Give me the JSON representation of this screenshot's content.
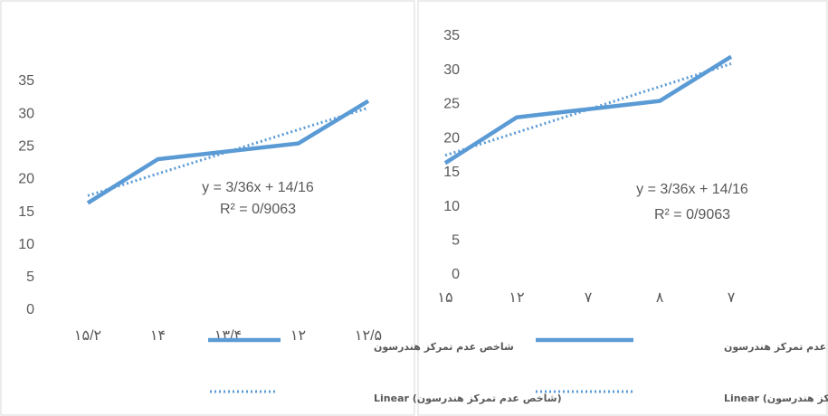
{
  "chart_data": [
    {
      "type": "line",
      "categories": [
        "۱۵/۲",
        "۱۴",
        "۱۳/۴",
        "۱۲",
        "۱۲/۵"
      ],
      "series": [
        {
          "name": "شاخص عدم تمرکز هندرسون",
          "color": "#5b9bd5",
          "values": [
            16.4,
            23.1,
            24.3,
            25.5,
            32
          ]
        },
        {
          "name": "Linear (شاخص عدم تمرکز هندرسون)",
          "color": "#5b9bd5",
          "values": [
            17.52,
            20.88,
            24.24,
            27.6,
            30.96
          ]
        }
      ],
      "annotations": [
        "y = 3/36x + 14/16",
        "R² = 0/9063"
      ],
      "ylim": [
        0,
        35
      ],
      "yticks": [
        0,
        5,
        10,
        15,
        20,
        25,
        30,
        35
      ],
      "legend": "bottom"
    },
    {
      "type": "line",
      "categories": [
        "۱۵",
        "۱۲",
        "۷",
        "۸",
        "۷"
      ],
      "series": [
        {
          "name": "شاخص عدم تمرکز هندرسون",
          "color": "#5b9bd5",
          "values": [
            16.4,
            23.1,
            24.3,
            25.5,
            32
          ]
        },
        {
          "name": "Linear (شاخص عدم تمرکز هندرسون)",
          "color": "#5b9bd5",
          "values": [
            17.52,
            20.88,
            24.24,
            27.6,
            30.96
          ]
        }
      ],
      "annotations": [
        "y = 3/36x + 14/16",
        "R² = 0/9063"
      ],
      "ylim": [
        0,
        35
      ],
      "yticks": [
        0,
        5,
        10,
        15,
        20,
        25,
        30,
        35
      ],
      "legend": "bottom"
    }
  ]
}
